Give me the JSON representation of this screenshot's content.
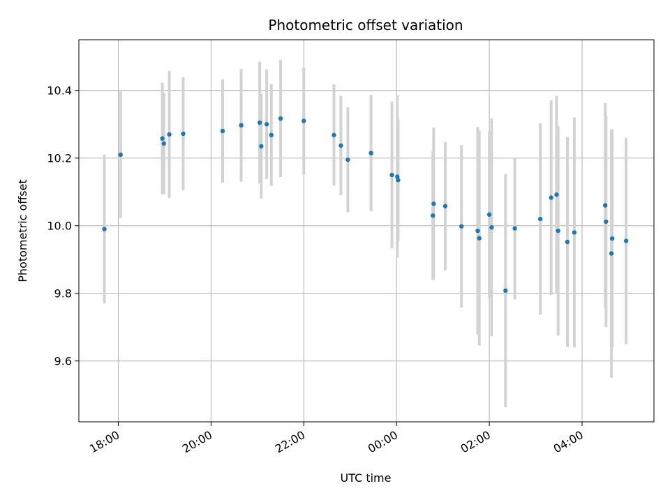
{
  "chart_data": {
    "type": "scatter",
    "title": "Photometric offset variation",
    "xlabel": "UTC time",
    "ylabel": "Photometric offset",
    "x_ticks": [
      "18:00",
      "20:00",
      "22:00",
      "00:00",
      "02:00",
      "04:00"
    ],
    "y_ticks": [
      "9.6",
      "9.8",
      "10.0",
      "10.2",
      "10.4"
    ],
    "ylim": [
      9.42,
      10.55
    ],
    "xlim": [
      "17:09",
      "05:33"
    ],
    "grid": true,
    "marker_color": "#1f77b4",
    "errorbar_color": "#d3d3d3",
    "points": [
      {
        "t": "17:42",
        "y": 9.99,
        "err": 0.22
      },
      {
        "t": "18:03",
        "y": 10.21,
        "err": 0.187
      },
      {
        "t": "18:57",
        "y": 10.258,
        "err": 0.165
      },
      {
        "t": "18:59",
        "y": 10.243,
        "err": 0.15
      },
      {
        "t": "19:06",
        "y": 10.27,
        "err": 0.188
      },
      {
        "t": "19:24",
        "y": 10.272,
        "err": 0.167
      },
      {
        "t": "20:15",
        "y": 10.28,
        "err": 0.153
      },
      {
        "t": "20:39",
        "y": 10.297,
        "err": 0.167
      },
      {
        "t": "21:03",
        "y": 10.305,
        "err": 0.18
      },
      {
        "t": "21:05",
        "y": 10.235,
        "err": 0.155
      },
      {
        "t": "21:12",
        "y": 10.3,
        "err": 0.162
      },
      {
        "t": "21:18",
        "y": 10.268,
        "err": 0.15
      },
      {
        "t": "21:30",
        "y": 10.317,
        "err": 0.173
      },
      {
        "t": "22:00",
        "y": 10.31,
        "err": 0.158
      },
      {
        "t": "22:39",
        "y": 10.268,
        "err": 0.15
      },
      {
        "t": "22:48",
        "y": 10.237,
        "err": 0.147
      },
      {
        "t": "22:57",
        "y": 10.195,
        "err": 0.155
      },
      {
        "t": "23:27",
        "y": 10.215,
        "err": 0.172
      },
      {
        "t": "23:54",
        "y": 10.15,
        "err": 0.217
      },
      {
        "t": "00:01",
        "y": 10.145,
        "err": 0.24
      },
      {
        "t": "00:02",
        "y": 10.135,
        "err": 0.18
      },
      {
        "t": "00:48",
        "y": 10.065,
        "err": 0.225
      },
      {
        "t": "00:47",
        "y": 10.03,
        "err": 0.19
      },
      {
        "t": "01:03",
        "y": 10.058,
        "err": 0.19
      },
      {
        "t": "01:24",
        "y": 9.998,
        "err": 0.24
      },
      {
        "t": "01:45",
        "y": 9.985,
        "err": 0.307
      },
      {
        "t": "01:47",
        "y": 9.963,
        "err": 0.317
      },
      {
        "t": "02:00",
        "y": 10.033,
        "err": 0.245
      },
      {
        "t": "02:03",
        "y": 9.995,
        "err": 0.322
      },
      {
        "t": "02:21",
        "y": 9.808,
        "err": 0.345
      },
      {
        "t": "02:33",
        "y": 9.992,
        "err": 0.21
      },
      {
        "t": "03:06",
        "y": 10.02,
        "err": 0.283
      },
      {
        "t": "03:20",
        "y": 10.083,
        "err": 0.288
      },
      {
        "t": "03:27",
        "y": 10.092,
        "err": 0.292
      },
      {
        "t": "03:29",
        "y": 9.985,
        "err": 0.31
      },
      {
        "t": "03:41",
        "y": 9.952,
        "err": 0.31
      },
      {
        "t": "03:50",
        "y": 9.98,
        "err": 0.34
      },
      {
        "t": "04:30",
        "y": 10.06,
        "err": 0.302
      },
      {
        "t": "04:31",
        "y": 10.012,
        "err": 0.312
      },
      {
        "t": "04:38",
        "y": 9.918,
        "err": 0.367
      },
      {
        "t": "04:39",
        "y": 9.962,
        "err": 0.322
      },
      {
        "t": "04:57",
        "y": 9.955,
        "err": 0.305
      }
    ]
  }
}
